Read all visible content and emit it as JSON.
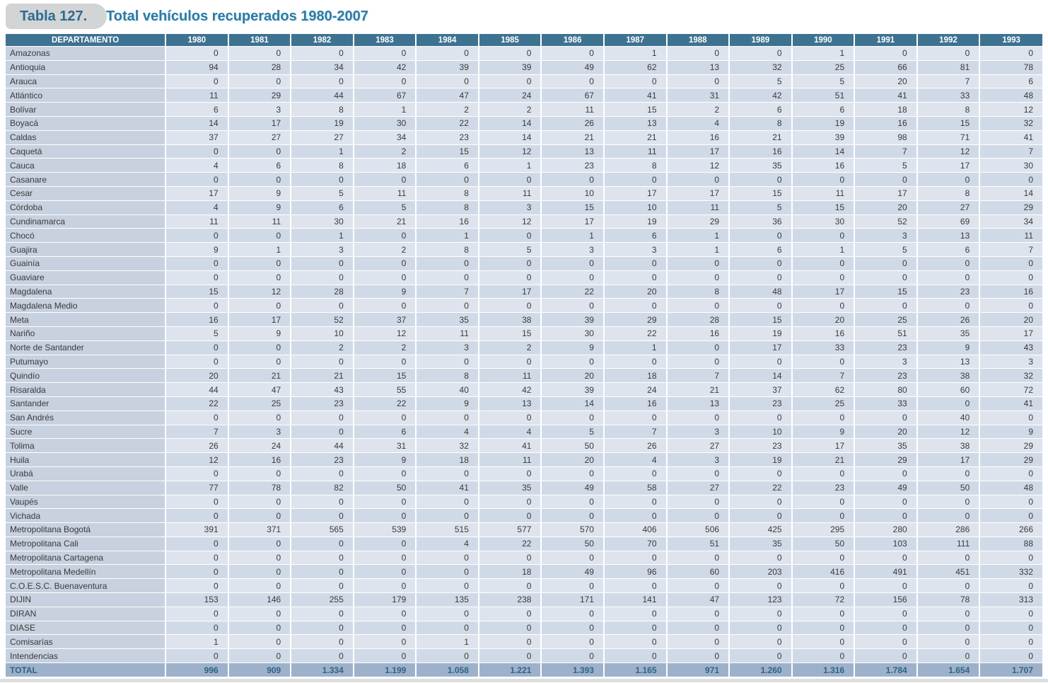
{
  "page": {
    "title_badge": "Tabla 127.",
    "title": "Total vehículos recuperados 1980-2007"
  },
  "table": {
    "department_header": "DEPARTAMENTO",
    "year_headers": [
      "1980",
      "1981",
      "1982",
      "1983",
      "1984",
      "1985",
      "1986",
      "1987",
      "1988",
      "1989",
      "1990",
      "1991",
      "1992",
      "1993"
    ],
    "rows": [
      {
        "name": "Amazonas",
        "values": [
          0,
          0,
          0,
          0,
          0,
          0,
          0,
          1,
          0,
          0,
          1,
          0,
          0,
          0
        ]
      },
      {
        "name": "Antioquia",
        "values": [
          94,
          28,
          34,
          42,
          39,
          39,
          49,
          62,
          13,
          32,
          25,
          66,
          81,
          78
        ]
      },
      {
        "name": "Arauca",
        "values": [
          0,
          0,
          0,
          0,
          0,
          0,
          0,
          0,
          0,
          5,
          5,
          20,
          7,
          6
        ]
      },
      {
        "name": "Atlántico",
        "values": [
          11,
          29,
          44,
          67,
          47,
          24,
          67,
          41,
          31,
          42,
          51,
          41,
          33,
          48
        ]
      },
      {
        "name": "Bolívar",
        "values": [
          6,
          3,
          8,
          1,
          2,
          2,
          11,
          15,
          2,
          6,
          6,
          18,
          8,
          12
        ]
      },
      {
        "name": "Boyacá",
        "values": [
          14,
          17,
          19,
          30,
          22,
          14,
          26,
          13,
          4,
          8,
          19,
          16,
          15,
          32
        ]
      },
      {
        "name": "Caldas",
        "values": [
          37,
          27,
          27,
          34,
          23,
          14,
          21,
          21,
          16,
          21,
          39,
          98,
          71,
          41
        ]
      },
      {
        "name": "Caquetá",
        "values": [
          0,
          0,
          1,
          2,
          15,
          12,
          13,
          11,
          17,
          16,
          14,
          7,
          12,
          7
        ]
      },
      {
        "name": "Cauca",
        "values": [
          4,
          6,
          8,
          18,
          6,
          1,
          23,
          8,
          12,
          35,
          16,
          5,
          17,
          30
        ]
      },
      {
        "name": "Casanare",
        "values": [
          0,
          0,
          0,
          0,
          0,
          0,
          0,
          0,
          0,
          0,
          0,
          0,
          0,
          0
        ]
      },
      {
        "name": "Cesar",
        "values": [
          17,
          9,
          5,
          11,
          8,
          11,
          10,
          17,
          17,
          15,
          11,
          17,
          8,
          14
        ]
      },
      {
        "name": "Córdoba",
        "values": [
          4,
          9,
          6,
          5,
          8,
          3,
          15,
          10,
          11,
          5,
          15,
          20,
          27,
          29
        ]
      },
      {
        "name": "Cundinamarca",
        "values": [
          11,
          11,
          30,
          21,
          16,
          12,
          17,
          19,
          29,
          36,
          30,
          52,
          69,
          34
        ]
      },
      {
        "name": "Chocó",
        "values": [
          0,
          0,
          1,
          0,
          1,
          0,
          1,
          6,
          1,
          0,
          0,
          3,
          13,
          11
        ]
      },
      {
        "name": "Guajira",
        "values": [
          9,
          1,
          3,
          2,
          8,
          5,
          3,
          3,
          1,
          6,
          1,
          5,
          6,
          7
        ]
      },
      {
        "name": "Guainía",
        "values": [
          0,
          0,
          0,
          0,
          0,
          0,
          0,
          0,
          0,
          0,
          0,
          0,
          0,
          0
        ]
      },
      {
        "name": "Guaviare",
        "values": [
          0,
          0,
          0,
          0,
          0,
          0,
          0,
          0,
          0,
          0,
          0,
          0,
          0,
          0
        ]
      },
      {
        "name": "Magdalena",
        "values": [
          15,
          12,
          28,
          9,
          7,
          17,
          22,
          20,
          8,
          48,
          17,
          15,
          23,
          16
        ]
      },
      {
        "name": "Magdalena Medio",
        "values": [
          0,
          0,
          0,
          0,
          0,
          0,
          0,
          0,
          0,
          0,
          0,
          0,
          0,
          0
        ]
      },
      {
        "name": "Meta",
        "values": [
          16,
          17,
          52,
          37,
          35,
          38,
          39,
          29,
          28,
          15,
          20,
          25,
          26,
          20
        ]
      },
      {
        "name": "Nariño",
        "values": [
          5,
          9,
          10,
          12,
          11,
          15,
          30,
          22,
          16,
          19,
          16,
          51,
          35,
          17
        ]
      },
      {
        "name": "Norte de Santander",
        "values": [
          0,
          0,
          2,
          2,
          3,
          2,
          9,
          1,
          0,
          17,
          33,
          23,
          9,
          43
        ]
      },
      {
        "name": "Putumayo",
        "values": [
          0,
          0,
          0,
          0,
          0,
          0,
          0,
          0,
          0,
          0,
          0,
          3,
          13,
          3
        ]
      },
      {
        "name": "Quindío",
        "values": [
          20,
          21,
          21,
          15,
          8,
          11,
          20,
          18,
          7,
          14,
          7,
          23,
          38,
          32
        ]
      },
      {
        "name": "Risaralda",
        "values": [
          44,
          47,
          43,
          55,
          40,
          42,
          39,
          24,
          21,
          37,
          62,
          80,
          60,
          72
        ]
      },
      {
        "name": "Santander",
        "values": [
          22,
          25,
          23,
          22,
          9,
          13,
          14,
          16,
          13,
          23,
          25,
          33,
          0,
          41
        ]
      },
      {
        "name": "San Andrés",
        "values": [
          0,
          0,
          0,
          0,
          0,
          0,
          0,
          0,
          0,
          0,
          0,
          0,
          40,
          0
        ]
      },
      {
        "name": "Sucre",
        "values": [
          7,
          3,
          0,
          6,
          4,
          4,
          5,
          7,
          3,
          10,
          9,
          20,
          12,
          9
        ]
      },
      {
        "name": "Tolima",
        "values": [
          26,
          24,
          44,
          31,
          32,
          41,
          50,
          26,
          27,
          23,
          17,
          35,
          38,
          29
        ]
      },
      {
        "name": "Huila",
        "values": [
          12,
          16,
          23,
          9,
          18,
          11,
          20,
          4,
          3,
          19,
          21,
          29,
          17,
          29
        ]
      },
      {
        "name": "Urabá",
        "values": [
          0,
          0,
          0,
          0,
          0,
          0,
          0,
          0,
          0,
          0,
          0,
          0,
          0,
          0
        ]
      },
      {
        "name": "Valle",
        "values": [
          77,
          78,
          82,
          50,
          41,
          35,
          49,
          58,
          27,
          22,
          23,
          49,
          50,
          48
        ]
      },
      {
        "name": "Vaupés",
        "values": [
          0,
          0,
          0,
          0,
          0,
          0,
          0,
          0,
          0,
          0,
          0,
          0,
          0,
          0
        ]
      },
      {
        "name": "Vichada",
        "values": [
          0,
          0,
          0,
          0,
          0,
          0,
          0,
          0,
          0,
          0,
          0,
          0,
          0,
          0
        ]
      },
      {
        "name": "Metropolitana Bogotá",
        "values": [
          391,
          371,
          565,
          539,
          515,
          577,
          570,
          406,
          506,
          425,
          295,
          280,
          286,
          266
        ]
      },
      {
        "name": "Metropolitana Cali",
        "values": [
          0,
          0,
          0,
          0,
          4,
          22,
          50,
          70,
          51,
          35,
          50,
          103,
          111,
          88
        ]
      },
      {
        "name": "Metropolitana Cartagena",
        "values": [
          0,
          0,
          0,
          0,
          0,
          0,
          0,
          0,
          0,
          0,
          0,
          0,
          0,
          0
        ]
      },
      {
        "name": "Metropolitana Medellín",
        "values": [
          0,
          0,
          0,
          0,
          0,
          18,
          49,
          96,
          60,
          203,
          416,
          491,
          451,
          332
        ]
      },
      {
        "name": "C.O.E.S.C. Buenaventura",
        "values": [
          0,
          0,
          0,
          0,
          0,
          0,
          0,
          0,
          0,
          0,
          0,
          0,
          0,
          0
        ]
      },
      {
        "name": "DIJIN",
        "values": [
          153,
          146,
          255,
          179,
          135,
          238,
          171,
          141,
          47,
          123,
          72,
          156,
          78,
          313
        ]
      },
      {
        "name": "DIRAN",
        "values": [
          0,
          0,
          0,
          0,
          0,
          0,
          0,
          0,
          0,
          0,
          0,
          0,
          0,
          0
        ]
      },
      {
        "name": "DIASE",
        "values": [
          0,
          0,
          0,
          0,
          0,
          0,
          0,
          0,
          0,
          0,
          0,
          0,
          0,
          0
        ]
      },
      {
        "name": "Comisarías",
        "values": [
          1,
          0,
          0,
          0,
          1,
          0,
          0,
          0,
          0,
          0,
          0,
          0,
          0,
          0
        ]
      },
      {
        "name": "Intendencias",
        "values": [
          0,
          0,
          0,
          0,
          0,
          0,
          0,
          0,
          0,
          0,
          0,
          0,
          0,
          0
        ]
      }
    ],
    "total": {
      "label": "TOTAL",
      "values": [
        "996",
        "909",
        "1.334",
        "1.199",
        "1.058",
        "1.221",
        "1.393",
        "1.165",
        "971",
        "1.260",
        "1.316",
        "1.784",
        "1.654",
        "1.707"
      ]
    }
  },
  "colors": {
    "header_bg": "#3e7291",
    "row_light": "#dee4ee",
    "row_dark": "#d0dae7",
    "dept_bg": "#c7d1e0",
    "total_bg": "#9db1cb",
    "total_text": "#2f6386",
    "badge_bg": "#d3d4d6",
    "badge_text": "#2c6a93",
    "title_text": "#2e7ba4",
    "cell_text": "#3a3a3a"
  }
}
